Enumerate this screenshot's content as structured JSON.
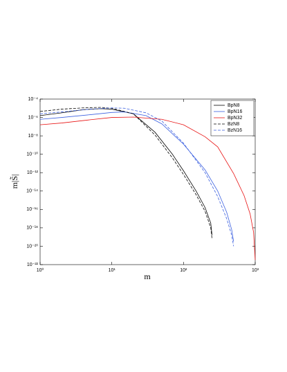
{
  "chart_data": {
    "type": "line",
    "log_x": true,
    "log_y": true,
    "legend": "upper right",
    "xlabel": "m",
    "ylabel": "m|S̃|",
    "xlim": [
      1,
      1000
    ],
    "ylim": [
      1e-22,
      0.0001
    ],
    "xticks": [
      {
        "value": 1,
        "label": "10⁰"
      },
      {
        "value": 10,
        "label": "10¹"
      },
      {
        "value": 100,
        "label": "10²"
      },
      {
        "value": 1000,
        "label": "10³"
      }
    ],
    "yticks": [
      {
        "value": 1e-22,
        "label": "10⁻²²"
      },
      {
        "value": 1e-20,
        "label": "10⁻²⁰"
      },
      {
        "value": 1e-18,
        "label": "10⁻¹⁸"
      },
      {
        "value": 1e-16,
        "label": "10⁻¹⁶"
      },
      {
        "value": 1e-14,
        "label": "10⁻¹⁴"
      },
      {
        "value": 1e-12,
        "label": "10⁻¹²"
      },
      {
        "value": 1e-10,
        "label": "10⁻¹⁰"
      },
      {
        "value": 1e-08,
        "label": "10⁻⁸"
      },
      {
        "value": 1e-06,
        "label": "10⁻⁶"
      },
      {
        "value": 0.0001,
        "label": "10⁻⁴"
      }
    ],
    "series": [
      {
        "name": "BpN8",
        "color": "#000000",
        "dash": false,
        "x": [
          1,
          2,
          4,
          7,
          10,
          20,
          40,
          70,
          100,
          150,
          200,
          240,
          250
        ],
        "values": [
          1.6e-06,
          3.2e-06,
          7e-06,
          9e-06,
          8e-06,
          2.5e-06,
          2.5e-08,
          1e-10,
          1.6e-12,
          1e-14,
          1.6e-16,
          3.2e-18,
          1.6e-19
        ]
      },
      {
        "name": "BpN16",
        "color": "#3a5fe0",
        "dash": false,
        "x": [
          1,
          2,
          5,
          10,
          15,
          30,
          50,
          100,
          200,
          300,
          400,
          470,
          500
        ],
        "values": [
          6.3e-07,
          1e-06,
          2e-06,
          3.5e-06,
          4e-06,
          1.6e-06,
          2e-07,
          1.25e-09,
          2e-12,
          1e-14,
          5e-17,
          6.3e-19,
          3.2e-20
        ]
      },
      {
        "name": "BpN32",
        "color": "#e81010",
        "dash": false,
        "x": [
          1,
          2,
          5,
          10,
          20,
          50,
          100,
          200,
          300,
          500,
          700,
          850,
          950,
          1000
        ],
        "values": [
          1.6e-07,
          2.5e-07,
          5.6e-07,
          1e-06,
          1.1e-06,
          6.3e-07,
          1.6e-07,
          8e-09,
          6.3e-10,
          8e-13,
          3.2e-15,
          3.2e-17,
          3.2e-19,
          3.2e-22
        ]
      },
      {
        "name": "BzN8",
        "color": "#000000",
        "dash": true,
        "x": [
          1,
          2,
          4,
          7,
          10,
          20,
          40,
          70,
          100,
          150,
          200,
          240,
          250
        ],
        "values": [
          4.5e-06,
          8e-06,
          1.1e-05,
          1.25e-05,
          1e-05,
          2.5e-06,
          1.25e-08,
          4e-11,
          6.3e-13,
          4e-15,
          6.3e-17,
          1e-18,
          6.3e-20
        ]
      },
      {
        "name": "BzN16",
        "color": "#3a5fe0",
        "dash": true,
        "x": [
          1,
          2,
          5,
          10,
          15,
          30,
          50,
          100,
          200,
          300,
          400,
          470,
          500
        ],
        "values": [
          2.5e-06,
          4e-06,
          8e-06,
          1.1e-05,
          1e-05,
          3.2e-06,
          4e-07,
          1.6e-09,
          1e-12,
          2.5e-15,
          1e-17,
          1.6e-19,
          1e-20
        ]
      }
    ]
  }
}
